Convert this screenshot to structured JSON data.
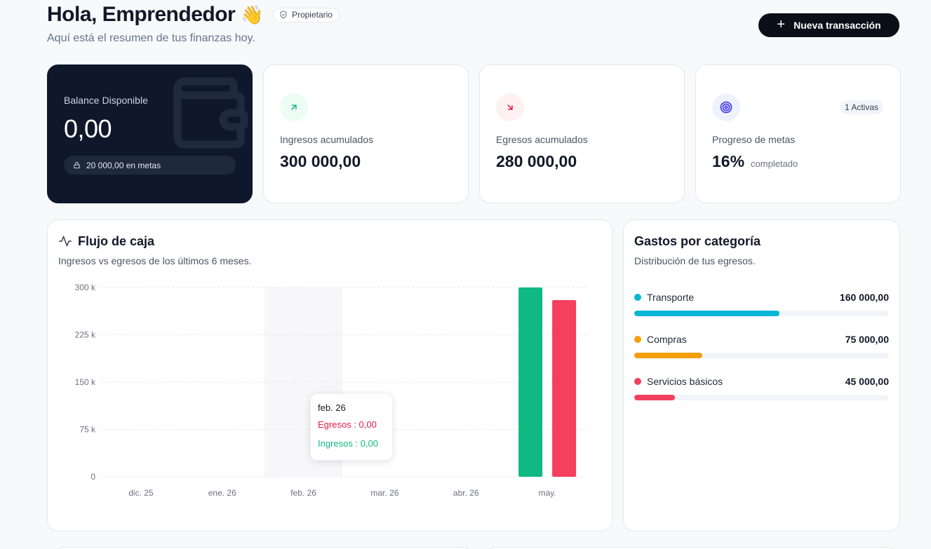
{
  "header": {
    "greeting": "Hola, Emprendedor",
    "wave_emoji": "👋",
    "role_badge": "Propietario",
    "subtitle": "Aquí está el resumen de tus finanzas hoy.",
    "new_transaction_label": "Nueva transacción"
  },
  "stats": {
    "balance": {
      "label": "Balance Disponible",
      "value": "0,00",
      "goals_note": "20 000,00 en metas",
      "icon": "wallet-icon"
    },
    "income": {
      "label": "Ingresos acumulados",
      "value": "300 000,00",
      "icon": "arrow-up-right-icon",
      "color": "#10b981"
    },
    "expenses": {
      "label": "Egresos acumulados",
      "value": "280 000,00",
      "icon": "arrow-down-right-icon",
      "color": "#e11d48"
    },
    "goals": {
      "label": "Progreso de metas",
      "value": "16%",
      "note": "completado",
      "active_badge": "1 Activas",
      "icon": "target-icon",
      "color": "#4f46e5"
    }
  },
  "cashflow": {
    "title": "Flujo de caja",
    "subtitle": "Ingresos vs egresos de los últimos 6 meses.",
    "tooltip": {
      "date": "feb. 26",
      "expenses": "Egresos : 0,00",
      "income": "Ingresos : 0,00"
    }
  },
  "chart_data": {
    "type": "bar",
    "categories": [
      "dic. 25",
      "ene. 26",
      "feb. 26",
      "mar. 26",
      "abr. 26",
      "may."
    ],
    "series": [
      {
        "values": [
          0,
          0,
          0,
          0,
          0,
          300000
        ],
        "color": "#10b981"
      },
      {
        "values": [
          0,
          0,
          0,
          0,
          0,
          280000
        ],
        "color": "#f43f5e"
      }
    ],
    "y_ticks": [
      "0",
      "75 k",
      "150 k",
      "225 k",
      "300 k"
    ],
    "y_tick_values": [
      0,
      75000,
      150000,
      225000,
      300000
    ],
    "ylim": [
      0,
      300000
    ],
    "grid": true,
    "highlighted_category": "feb. 26"
  },
  "categories_panel": {
    "title": "Gastos por categoría",
    "subtitle": "Distribución de tus egresos.",
    "items": [
      {
        "name": "Transporte",
        "amount": "160 000,00",
        "share": 0.571,
        "color": "#06b6d4"
      },
      {
        "name": "Compras",
        "amount": "75 000,00",
        "share": 0.268,
        "color": "#f59e0b"
      },
      {
        "name": "Servicios básicos",
        "amount": "45 000,00",
        "share": 0.161,
        "color": "#f43f5e"
      }
    ]
  }
}
